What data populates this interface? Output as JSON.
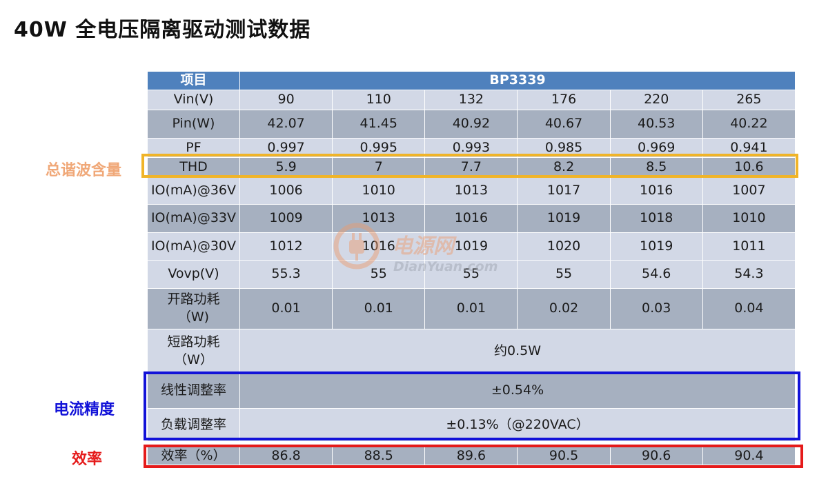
{
  "title": "40W 全电压隔离驱动测试数据",
  "table": {
    "header_label": "项目",
    "header_model": "BP3339",
    "rows": [
      {
        "label": "Vin(V)",
        "cells": [
          "90",
          "110",
          "132",
          "176",
          "220",
          "265"
        ]
      },
      {
        "label": "Pin(W)",
        "cells": [
          "42.07",
          "41.45",
          "40.92",
          "40.67",
          "40.53",
          "40.22"
        ]
      },
      {
        "label": "PF",
        "cells": [
          "0.997",
          "0.995",
          "0.993",
          "0.985",
          "0.969",
          "0.941"
        ]
      },
      {
        "label": "THD",
        "cells": [
          "5.9",
          "7",
          "7.7",
          "8.2",
          "8.5",
          "10.6"
        ]
      },
      {
        "label": "IO(mA)@36V",
        "cells": [
          "1006",
          "1010",
          "1013",
          "1017",
          "1016",
          "1007"
        ]
      },
      {
        "label": "IO(mA)@33V",
        "cells": [
          "1009",
          "1013",
          "1016",
          "1019",
          "1018",
          "1010"
        ]
      },
      {
        "label": "IO(mA)@30V",
        "cells": [
          "1012",
          "1016",
          "1019",
          "1020",
          "1019",
          "1011"
        ]
      },
      {
        "label": "Vovp(V)",
        "cells": [
          "55.3",
          "55",
          "55",
          "55",
          "54.6",
          "54.3"
        ]
      },
      {
        "label": "开路功耗\n（W)",
        "cells": [
          "0.01",
          "0.01",
          "0.01",
          "0.02",
          "0.03",
          "0.04"
        ]
      }
    ],
    "short_circuit": {
      "label": "短路功耗\n（W）",
      "value": "约0.5W"
    },
    "line_regulation": {
      "label": "线性调整率",
      "value": "±0.54%"
    },
    "load_regulation": {
      "label": "负载调整率",
      "value": "±0.13%（@220VAC）"
    },
    "efficiency": {
      "label": "效率（%）",
      "cells": [
        "86.8",
        "88.5",
        "89.6",
        "90.5",
        "90.6",
        "90.4"
      ]
    }
  },
  "annotations": {
    "thd_label": "总谐波含量",
    "current_accuracy_label": "电流精度",
    "efficiency_label": "效率"
  },
  "watermark": {
    "cn": "电源网",
    "en": "DianYuan.com"
  },
  "colors": {
    "header_blue": "#4f81bd",
    "row_dark": "#a6b0c0",
    "row_light": "#d2d8e6",
    "thd_orange": "#f0b428",
    "thd_text_orange": "#f0a878",
    "accuracy_blue": "#1212d8",
    "efficiency_red": "#e51a1a"
  }
}
